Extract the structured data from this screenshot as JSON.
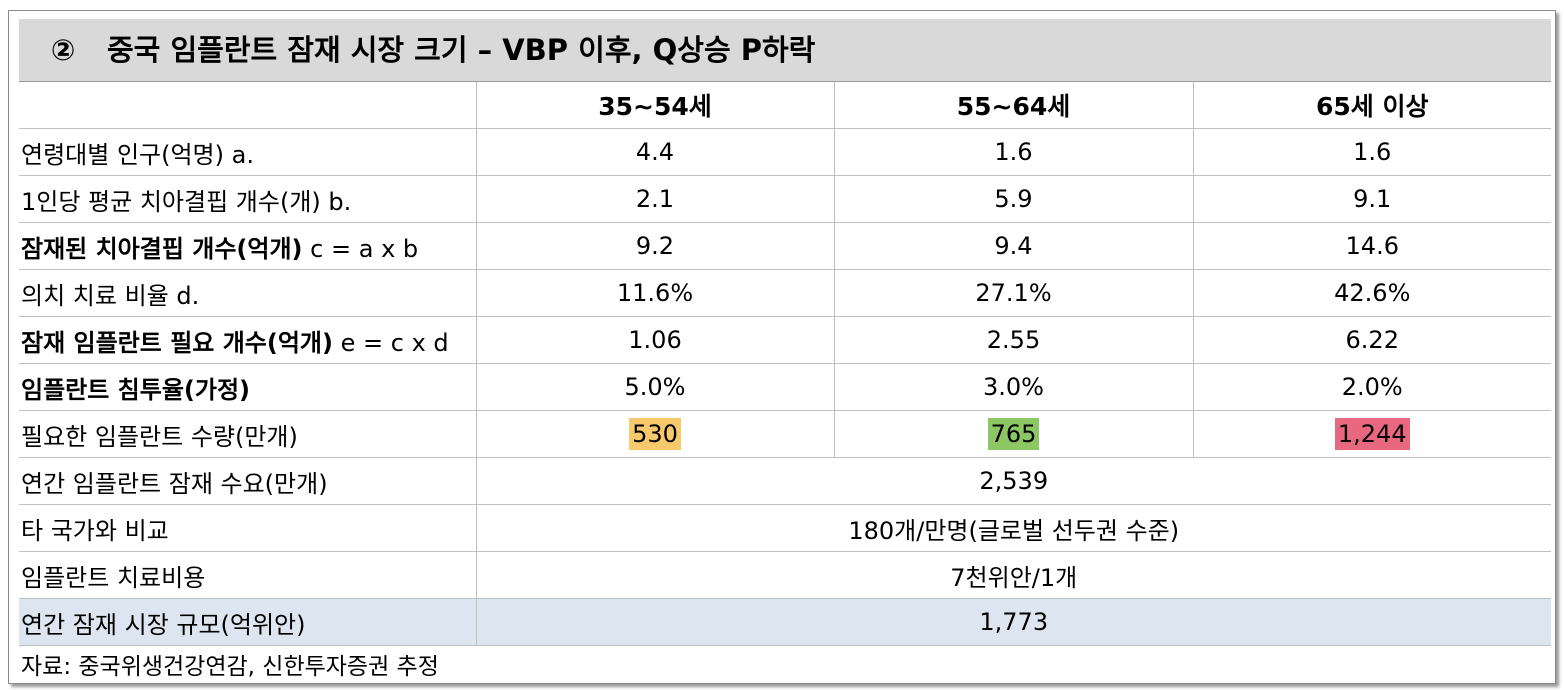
{
  "marker": "②",
  "title": "중국 임플란트 잠재 시장 크기 – VBP 이후, Q상승 P하락",
  "table": {
    "header": [
      "35~54세",
      "55~64세",
      "65세 이상"
    ],
    "rows": [
      {
        "label": "연령대별 인구(억명) a.",
        "cells": [
          "4.4",
          "1.6",
          "1.6"
        ]
      },
      {
        "label": "1인당 평균 치아결핍 개수(개) b.",
        "cells": [
          "2.1",
          "5.9",
          "9.1"
        ]
      },
      {
        "label_bold": "잠재된 치아결핍 개수(억개)",
        "label": "c = a x b",
        "cells": [
          "9.2",
          "9.4",
          "14.6"
        ]
      },
      {
        "label": "의치 치료 비율 d.",
        "cells": [
          "11.6%",
          "27.1%",
          "42.6%"
        ]
      },
      {
        "label_bold": "잠재 임플란트 필요 개수(억개)",
        "label": "e = c x d",
        "cells": [
          "1.06",
          "2.55",
          "6.22"
        ]
      },
      {
        "label_bold": "임플란트 침투율(가정)",
        "cells": [
          "5.0%",
          "3.0%",
          "2.0%"
        ]
      },
      {
        "label": "필요한 임플란트 수량(만개)",
        "cells": [
          "530",
          "765",
          "1,244"
        ],
        "highlights": [
          "#f6c96c",
          "#8dc763",
          "#e8697f"
        ]
      },
      {
        "label": "연간 임플란트 잠재 수요(만개)",
        "cells": [
          "2,539"
        ]
      },
      {
        "label": "타 국가와 비교",
        "cells": [
          "180개/만명(글로벌 선두권 수준)"
        ]
      },
      {
        "label": "임플란트 치료비용",
        "cells": [
          "7천위안/1개"
        ]
      },
      {
        "label": "연간 잠재 시장 규모(억위안)",
        "cells": [
          "1,773"
        ]
      }
    ]
  },
  "source": "자료: 중국위생건강연감, 신한투자증권 추정"
}
